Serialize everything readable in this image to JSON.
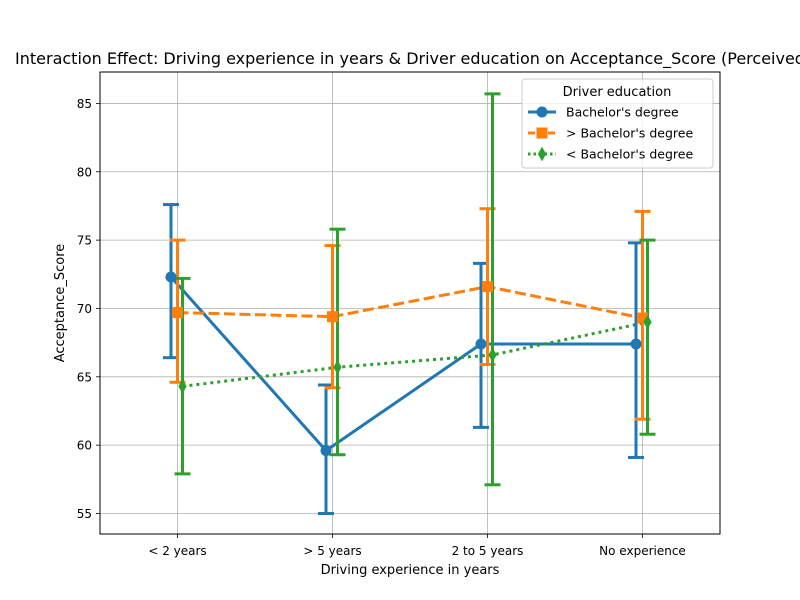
{
  "chart_data": {
    "type": "line",
    "title": "Interaction Effect: Driving experience in years & Driver education on Acceptance_Score (Perceived",
    "xlabel": "Driving experience in years",
    "ylabel": "Acceptance_Score",
    "categories": [
      "< 2 years",
      "> 5 years",
      "2 to 5 years",
      "No experience"
    ],
    "ylim": [
      53.5,
      87.3
    ],
    "yticks": [
      55,
      60,
      65,
      70,
      75,
      80,
      85
    ],
    "grid": true,
    "legend": {
      "title": "Driver education",
      "placement": "top-right"
    },
    "series": [
      {
        "name": "Bachelor's degree",
        "color": "#1f77b4",
        "marker": "circle",
        "line_style": "solid",
        "values": [
          72.3,
          59.6,
          67.4,
          67.4
        ],
        "ci_low": [
          66.4,
          55.0,
          61.3,
          59.1
        ],
        "ci_high": [
          77.6,
          64.4,
          73.3,
          74.8
        ]
      },
      {
        "name": "> Bachelor's degree",
        "color": "#ff7f0e",
        "marker": "square",
        "line_style": "dashed",
        "values": [
          69.7,
          69.4,
          71.6,
          69.3
        ],
        "ci_low": [
          64.6,
          64.2,
          65.9,
          61.9
        ],
        "ci_high": [
          75.0,
          74.6,
          77.3,
          77.1
        ]
      },
      {
        "name": "< Bachelor's degree",
        "color": "#2ca02c",
        "marker": "diamond",
        "line_style": "dotted",
        "values": [
          64.3,
          65.7,
          66.6,
          69.0
        ],
        "ci_low": [
          57.9,
          59.3,
          57.1,
          60.8
        ],
        "ci_high": [
          72.2,
          75.8,
          85.7,
          75.0
        ]
      }
    ]
  }
}
